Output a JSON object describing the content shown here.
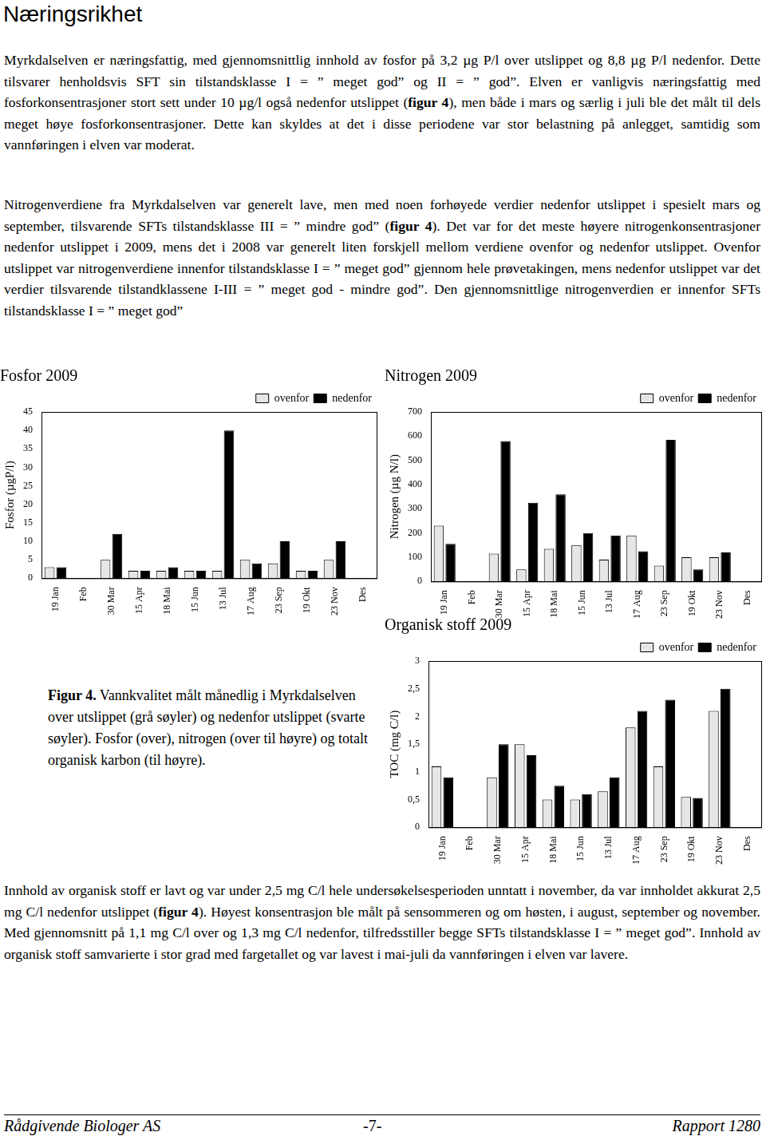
{
  "header": {
    "title": "Næringsrikhet"
  },
  "paragraphs": [
    [
      "Myrkdalselven er næringsfattig, med gjennomsnittlig innhold av fosfor på 3,2 µg P/l over utslippet og 8,8 µg P/l nedenfor. Dette tilsvarer henholdsvis SFT sin tilstandsklasse I = ” meget god” og II = ” god”. Elven er vanligvis næringsfattig med fosforkonsentrasjoner stort sett under 10 µg/l også nedenfor utslippet (",
      {
        "bold": "figur 4"
      },
      "), men både i mars og særlig i juli ble det målt til dels meget høye fosforkonsentrasjoner. Dette kan skyldes at det i disse periodene var stor belastning på anlegget, samtidig som vannføringen i elven var moderat."
    ],
    [
      "Nitrogenverdiene fra Myrkdalselven var generelt lave, men med noen forhøyede verdier nedenfor utslippet i spesielt mars og september, tilsvarende SFTs tilstandsklasse III = ” mindre god” (",
      {
        "bold": "figur 4"
      },
      "). Det var for det meste høyere nitrogenkonsentrasjoner nedenfor utslippet i 2009, mens det i 2008 var generelt liten forskjell mellom verdiene ovenfor og nedenfor utslippet. Ovenfor utslippet var nitrogenverdiene innenfor tilstandsklasse I = ” meget god” gjennom hele prøvetakingen, mens nedenfor utslippet var det verdier tilsvarende tilstandklassene I-III = ” meget god - mindre god”. Den gjennomsnittlige nitrogenverdien er innenfor SFTs tilstandsklasse I = ” meget god”"
    ],
    [
      "Innhold av organisk stoff er lavt og var under 2,5 mg C/l hele undersøkelsesperioden unntatt i november, da var innholdet akkurat 2,5 mg C/l nedenfor utslippet (",
      {
        "bold": "figur 4"
      },
      "). Høyest konsentrasjon ble målt på sensommeren og om høsten, i august, september og november. Med gjennomsnitt på 1,1 mg C/l over og 1,3 mg C/l nedenfor, tilfredsstiller begge SFTs tilstandsklasse I = ” meget god”. Innhold av organisk stoff samvarierte i stor grad med fargetallet og var lavest i mai-juli da vannføringen i elven var lavere."
    ]
  ],
  "chart_data": [
    {
      "type": "bar",
      "title": "Fosfor 2009",
      "ylabel": "Fosfor (µgP/l)",
      "categories": [
        "19 Jan",
        "Feb",
        "30 Mar",
        "15 Apr",
        "18 Mai",
        "15 Jun",
        "13 Jul",
        "17 Aug",
        "23 Sep",
        "19 Okt",
        "23 Nov",
        "Des"
      ],
      "series": [
        {
          "name": "ovenfor",
          "color": "#e6e6e6",
          "values": [
            3,
            null,
            5,
            2,
            2,
            2,
            2,
            5,
            4,
            2,
            5,
            null
          ]
        },
        {
          "name": "nedenfor",
          "color": "#000000",
          "values": [
            3,
            null,
            12,
            2,
            3,
            2,
            40,
            4,
            10,
            2,
            10,
            null
          ]
        }
      ],
      "ylim": [
        0,
        45
      ],
      "yticks": [
        0,
        5,
        10,
        15,
        20,
        25,
        30,
        35,
        40,
        45
      ],
      "grid": false,
      "legend": "top"
    },
    {
      "type": "bar",
      "title": "Nitrogen 2009",
      "ylabel": "Nitrogen (µg N/l)",
      "categories": [
        "19 Jan",
        "Feb",
        "30 Mar",
        "15 Apr",
        "18 Mai",
        "15 Jun",
        "13 Jul",
        "17 Aug",
        "23 Sep",
        "19 Okt",
        "23 Nov",
        "Des"
      ],
      "series": [
        {
          "name": "ovenfor",
          "color": "#e6e6e6",
          "values": [
            230,
            null,
            115,
            50,
            135,
            150,
            90,
            190,
            65,
            100,
            100,
            null
          ]
        },
        {
          "name": "nedenfor",
          "color": "#000000",
          "values": [
            155,
            null,
            580,
            325,
            360,
            200,
            190,
            125,
            585,
            50,
            120,
            null
          ]
        }
      ],
      "ylim": [
        0,
        700
      ],
      "yticks": [
        0,
        100,
        200,
        300,
        400,
        500,
        600,
        700
      ],
      "grid": false,
      "legend": "top"
    },
    {
      "type": "bar",
      "title": "Organisk stoff 2009",
      "ylabel": "TOC (mg C/l)",
      "categories": [
        "19 Jan",
        "Feb",
        "30 Mar",
        "15 Apr",
        "18 Mai",
        "15 Jun",
        "13 Jul",
        "17 Aug",
        "23 Sep",
        "19 Okt",
        "23 Nov",
        "Des"
      ],
      "series": [
        {
          "name": "ovenfor",
          "color": "#e6e6e6",
          "values": [
            1.1,
            null,
            0.9,
            1.5,
            0.5,
            0.5,
            0.65,
            1.8,
            1.1,
            0.55,
            2.1,
            null
          ]
        },
        {
          "name": "nedenfor",
          "color": "#000000",
          "values": [
            0.9,
            null,
            1.5,
            1.3,
            0.75,
            0.6,
            0.9,
            2.1,
            2.3,
            0.53,
            2.5,
            null
          ]
        }
      ],
      "ylim": [
        0,
        3
      ],
      "yticks": [
        0,
        {
          "value": 0.5,
          "label": "0,5"
        },
        1,
        {
          "value": 1.5,
          "label": "1,5"
        },
        2,
        {
          "value": 2.5,
          "label": "2,5"
        },
        3
      ],
      "grid": false,
      "legend": "top"
    }
  ],
  "caption": [
    {
      "bold": "Figur 4."
    },
    " Vannkvalitet målt månedlig i Myrkdalselven over utslippet (grå søyler) og nedenfor utslippet (svarte søyler). Fosfor (over), nitrogen (over til høyre) og totalt organisk karbon (til høyre)."
  ],
  "footer": {
    "left": "Rådgivende Biologer AS",
    "center": "-7-",
    "right": "Rapport 1280"
  }
}
